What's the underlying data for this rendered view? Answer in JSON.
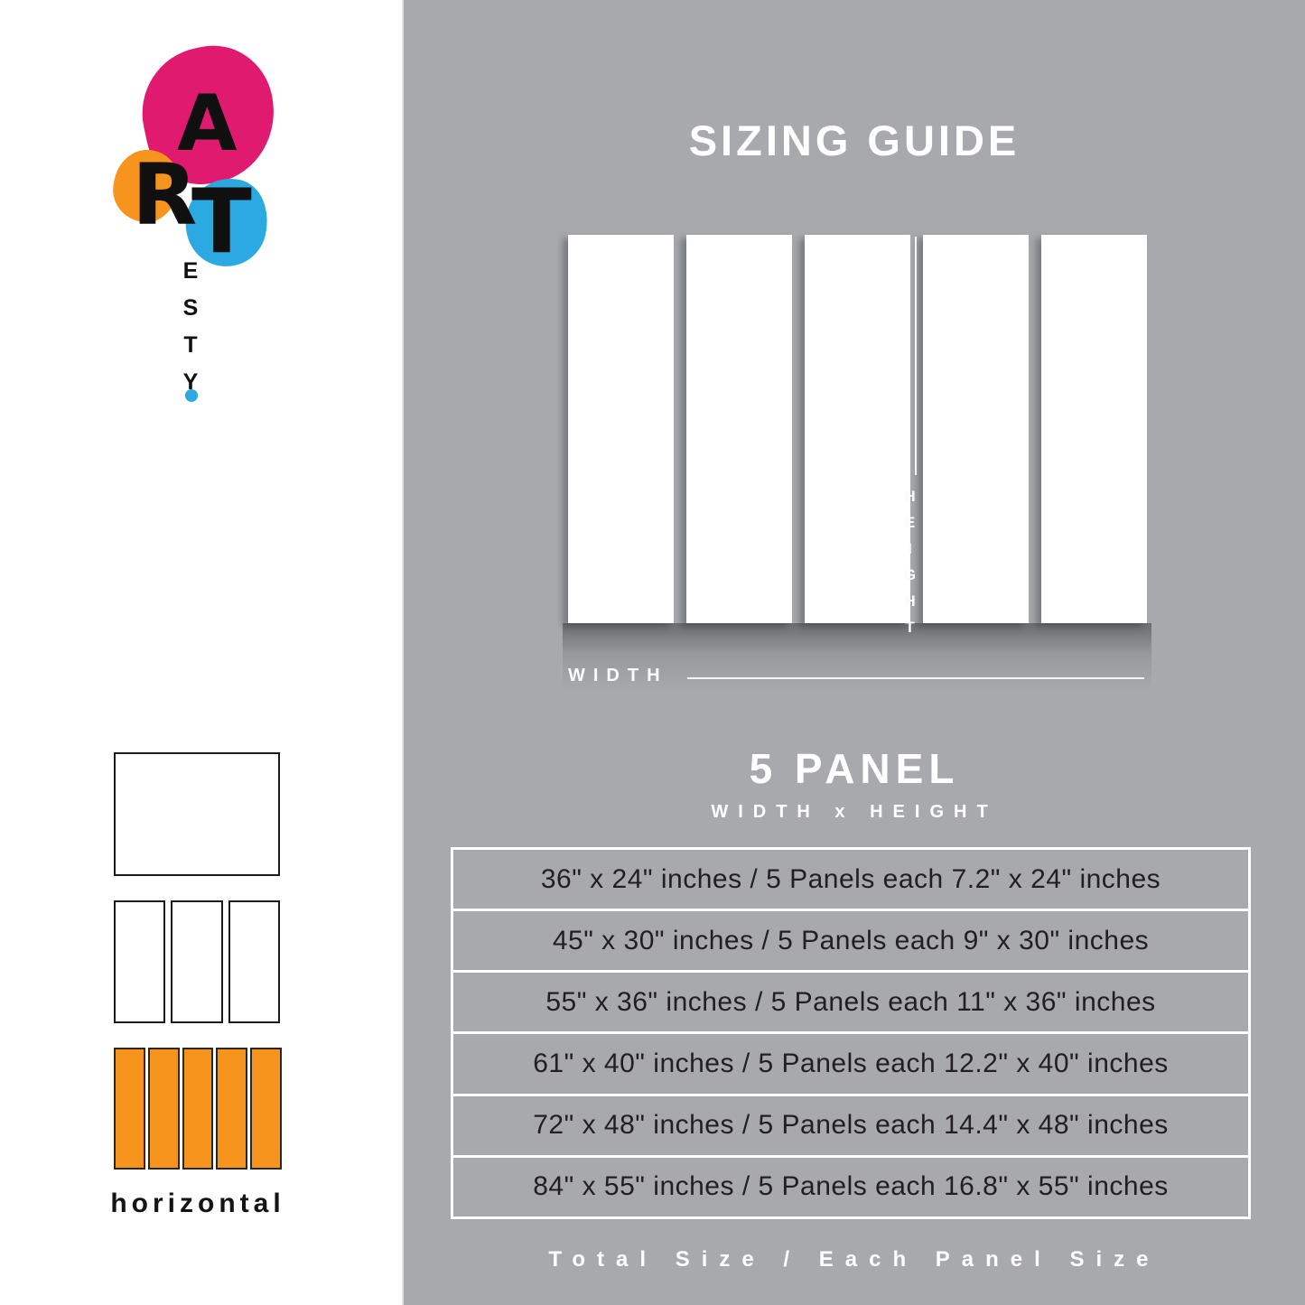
{
  "header": {
    "title": "SIZING GUIDE"
  },
  "logo": {
    "letter_a": "A",
    "letter_r": "R",
    "letter_t": "T",
    "vertical_text": "ESTY",
    "colors": {
      "pink": "#E01B6F",
      "orange": "#F6941E",
      "blue": "#2BA9E1"
    }
  },
  "diagram": {
    "panel_count": 5,
    "height_label": "HEIGHT",
    "width_label": "WIDTH"
  },
  "panel_section": {
    "title": "5 PANEL",
    "subtitle": "WIDTH x HEIGHT"
  },
  "size_table": {
    "rows": [
      {
        "text": "36\" x 24\" inches / 5 Panels each 7.2\" x 24\" inches"
      },
      {
        "text": "45\" x 30\" inches / 5 Panels each 9\" x 30\" inches"
      },
      {
        "text": "55\" x 36\" inches / 5 Panels each 11\" x 36\" inches"
      },
      {
        "text": "61\" x 40\" inches / 5 Panels each 12.2\" x 40\" inches"
      },
      {
        "text": "72\" x 48\" inches / 5 Panels each 14.4\" x 48\" inches"
      },
      {
        "text": "84\" x 55\" inches / 5 Panels each 16.8\" x 55\" inches"
      }
    ]
  },
  "footer": {
    "caption": "Total Size / Each Panel Size"
  },
  "sidebar": {
    "orientation_label": "horizontal"
  },
  "colors": {
    "background_gray": "#A7A9AC",
    "panel_white": "#FFFFFF",
    "table_text": "#231F20",
    "thumb_orange": "#F6941E"
  }
}
